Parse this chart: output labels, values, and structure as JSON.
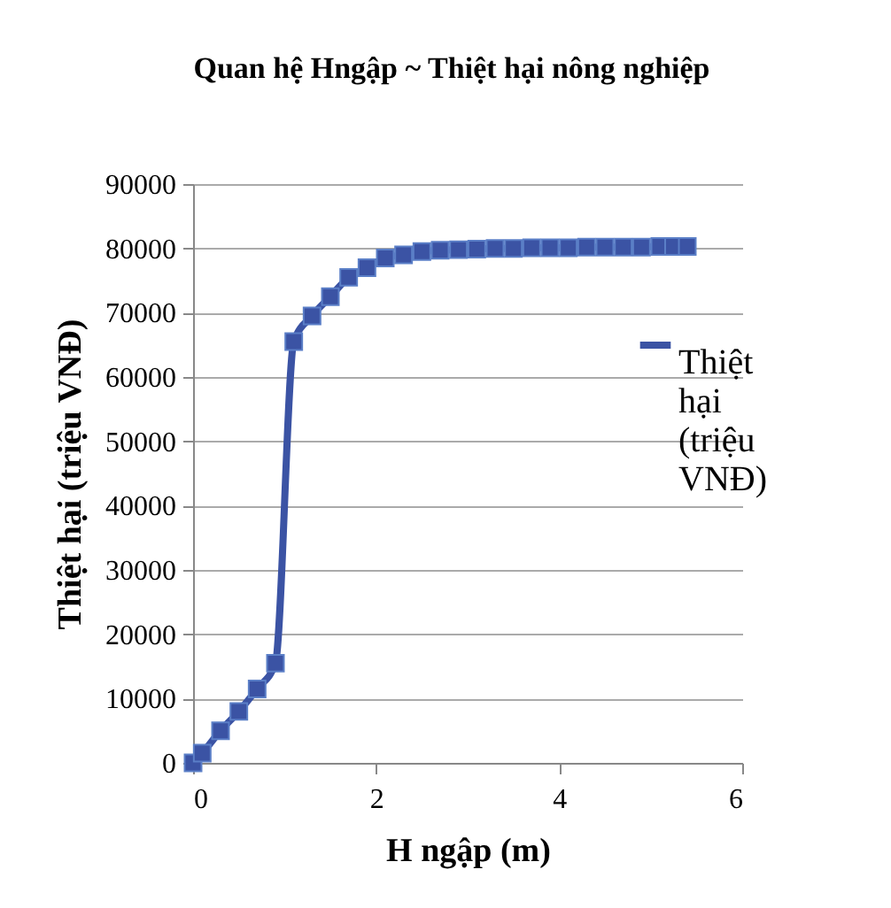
{
  "chart_data": {
    "type": "line",
    "title": "Quan hệ Hngập ~ Thiệt hại nông nghiệp",
    "xlabel": "H ngập (m)",
    "ylabel": "Thiệt hại (triệu VNĐ)",
    "x": [
      0,
      0.1,
      0.3,
      0.5,
      0.7,
      0.9,
      1.1,
      1.3,
      1.5,
      1.7,
      1.9,
      2.1,
      2.3,
      2.5,
      2.7,
      2.9,
      3.1,
      3.3,
      3.5,
      3.7,
      3.9,
      4.1,
      4.3,
      4.5,
      4.7,
      4.9,
      5.1,
      5.25,
      5.4
    ],
    "series": [
      {
        "name": "Thiệt hại (triệu VNĐ)",
        "color": "#3b53a4",
        "values": [
          0,
          1500,
          5000,
          8000,
          11500,
          15500,
          65500,
          69500,
          72500,
          75500,
          77000,
          78500,
          79000,
          79500,
          79700,
          79800,
          79900,
          80000,
          80000,
          80100,
          80100,
          80100,
          80200,
          80200,
          80200,
          80200,
          80300,
          80300,
          80300
        ]
      }
    ],
    "xlim": [
      0,
      6
    ],
    "xticks": [
      0,
      2,
      4,
      6
    ],
    "ylim": [
      0,
      90000
    ],
    "yticks": [
      0,
      10000,
      20000,
      30000,
      40000,
      50000,
      60000,
      70000,
      80000,
      90000
    ],
    "grid": "y",
    "legend": "right",
    "marker": "square",
    "line_style": "solid"
  }
}
